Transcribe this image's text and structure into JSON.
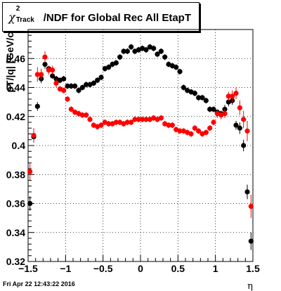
{
  "title": {
    "chi_symbol": "χ",
    "superscript": "2",
    "subscript": "Track",
    "main": "/NDF for Global Rec All EtapT"
  },
  "footer_date": "Fri Apr 22 12:43:22 2016",
  "chart_data": {
    "type": "scatter",
    "title": "χ²_Track/NDF for Global Rec All EtapT",
    "xlabel": "η",
    "ylabel": "pT/|q| [GeV/c",
    "xlim": [
      -1.5,
      1.5
    ],
    "ylim": [
      0.32,
      0.48
    ],
    "grid": true,
    "x_ticks": [
      -1.5,
      -1,
      -0.5,
      0,
      0.5,
      1,
      1.5
    ],
    "x_tick_labels": [
      "−1.5",
      "−1",
      "−0.5",
      "0",
      "0.5",
      "1",
      "1.5"
    ],
    "y_ticks": [
      0.32,
      0.34,
      0.36,
      0.38,
      0.4,
      0.42,
      0.44,
      0.46
    ],
    "y_tick_labels": [
      "0.32",
      "0.34",
      "0.36",
      "0.38",
      "0.4",
      "0.42",
      "0.44",
      "0.46"
    ],
    "series": [
      {
        "color": "#000000",
        "points": [
          [
            -1.475,
            0.36,
            0.005
          ],
          [
            -1.425,
            0.406,
            0.004
          ],
          [
            -1.375,
            0.427,
            0.003
          ],
          [
            -1.325,
            0.446,
            0.003
          ],
          [
            -1.275,
            0.456,
            0.003
          ],
          [
            -1.225,
            0.453,
            0.002
          ],
          [
            -1.175,
            0.448,
            0.002
          ],
          [
            -1.125,
            0.446,
            0.002
          ],
          [
            -1.075,
            0.445,
            0.002
          ],
          [
            -1.025,
            0.446,
            0.002
          ],
          [
            -0.975,
            0.441,
            0.002
          ],
          [
            -0.925,
            0.441,
            0.002
          ],
          [
            -0.875,
            0.441,
            0.002
          ],
          [
            -0.825,
            0.438,
            0.002
          ],
          [
            -0.775,
            0.44,
            0.002
          ],
          [
            -0.725,
            0.442,
            0.002
          ],
          [
            -0.675,
            0.442,
            0.002
          ],
          [
            -0.625,
            0.443,
            0.002
          ],
          [
            -0.575,
            0.445,
            0.002
          ],
          [
            -0.525,
            0.447,
            0.002
          ],
          [
            -0.475,
            0.453,
            0.002
          ],
          [
            -0.425,
            0.454,
            0.002
          ],
          [
            -0.375,
            0.456,
            0.002
          ],
          [
            -0.325,
            0.457,
            0.002
          ],
          [
            -0.275,
            0.461,
            0.002
          ],
          [
            -0.225,
            0.465,
            0.002
          ],
          [
            -0.175,
            0.465,
            0.002
          ],
          [
            -0.125,
            0.468,
            0.002
          ],
          [
            -0.075,
            0.465,
            0.002
          ],
          [
            -0.025,
            0.466,
            0.002
          ],
          [
            0.025,
            0.467,
            0.002
          ],
          [
            0.075,
            0.466,
            0.002
          ],
          [
            0.125,
            0.468,
            0.002
          ],
          [
            0.175,
            0.467,
            0.002
          ],
          [
            0.225,
            0.463,
            0.002
          ],
          [
            0.275,
            0.465,
            0.002
          ],
          [
            0.325,
            0.461,
            0.002
          ],
          [
            0.375,
            0.456,
            0.002
          ],
          [
            0.425,
            0.455,
            0.002
          ],
          [
            0.475,
            0.454,
            0.002
          ],
          [
            0.525,
            0.451,
            0.002
          ],
          [
            0.575,
            0.44,
            0.002
          ],
          [
            0.625,
            0.438,
            0.002
          ],
          [
            0.675,
            0.437,
            0.002
          ],
          [
            0.725,
            0.436,
            0.002
          ],
          [
            0.775,
            0.433,
            0.002
          ],
          [
            0.825,
            0.433,
            0.002
          ],
          [
            0.875,
            0.431,
            0.002
          ],
          [
            0.925,
            0.425,
            0.002
          ],
          [
            0.975,
            0.425,
            0.002
          ],
          [
            1.025,
            0.423,
            0.002
          ],
          [
            1.075,
            0.422,
            0.002
          ],
          [
            1.125,
            0.425,
            0.003
          ],
          [
            1.175,
            0.43,
            0.003
          ],
          [
            1.225,
            0.431,
            0.003
          ],
          [
            1.275,
            0.414,
            0.003
          ],
          [
            1.325,
            0.412,
            0.004
          ],
          [
            1.375,
            0.4,
            0.004
          ],
          [
            1.425,
            0.368,
            0.005
          ],
          [
            1.475,
            0.334,
            0.006
          ]
        ]
      },
      {
        "color": "#ff0000",
        "points": [
          [
            -1.475,
            0.382,
            0.006
          ],
          [
            -1.425,
            0.407,
            0.005
          ],
          [
            -1.375,
            0.449,
            0.005
          ],
          [
            -1.325,
            0.449,
            0.004
          ],
          [
            -1.275,
            0.461,
            0.004
          ],
          [
            -1.225,
            0.452,
            0.003
          ],
          [
            -1.175,
            0.452,
            0.003
          ],
          [
            -1.125,
            0.443,
            0.003
          ],
          [
            -1.075,
            0.439,
            0.002
          ],
          [
            -1.025,
            0.438,
            0.002
          ],
          [
            -0.975,
            0.432,
            0.002
          ],
          [
            -0.925,
            0.425,
            0.002
          ],
          [
            -0.875,
            0.423,
            0.002
          ],
          [
            -0.825,
            0.422,
            0.002
          ],
          [
            -0.775,
            0.421,
            0.002
          ],
          [
            -0.725,
            0.421,
            0.002
          ],
          [
            -0.675,
            0.418,
            0.002
          ],
          [
            -0.625,
            0.414,
            0.002
          ],
          [
            -0.575,
            0.413,
            0.002
          ],
          [
            -0.525,
            0.414,
            0.002
          ],
          [
            -0.475,
            0.416,
            0.002
          ],
          [
            -0.425,
            0.415,
            0.002
          ],
          [
            -0.375,
            0.415,
            0.002
          ],
          [
            -0.325,
            0.416,
            0.002
          ],
          [
            -0.275,
            0.416,
            0.002
          ],
          [
            -0.225,
            0.415,
            0.002
          ],
          [
            -0.175,
            0.416,
            0.002
          ],
          [
            -0.125,
            0.416,
            0.002
          ],
          [
            -0.075,
            0.418,
            0.002
          ],
          [
            -0.025,
            0.418,
            0.002
          ],
          [
            0.025,
            0.418,
            0.002
          ],
          [
            0.075,
            0.418,
            0.002
          ],
          [
            0.125,
            0.418,
            0.002
          ],
          [
            0.175,
            0.419,
            0.002
          ],
          [
            0.225,
            0.418,
            0.002
          ],
          [
            0.275,
            0.419,
            0.002
          ],
          [
            0.325,
            0.415,
            0.002
          ],
          [
            0.375,
            0.414,
            0.002
          ],
          [
            0.425,
            0.414,
            0.002
          ],
          [
            0.475,
            0.411,
            0.002
          ],
          [
            0.525,
            0.41,
            0.002
          ],
          [
            0.575,
            0.41,
            0.002
          ],
          [
            0.625,
            0.409,
            0.002
          ],
          [
            0.675,
            0.408,
            0.002
          ],
          [
            0.725,
            0.412,
            0.002
          ],
          [
            0.775,
            0.41,
            0.002
          ],
          [
            0.825,
            0.408,
            0.002
          ],
          [
            0.875,
            0.409,
            0.002
          ],
          [
            0.925,
            0.412,
            0.002
          ],
          [
            0.975,
            0.416,
            0.002
          ],
          [
            1.025,
            0.422,
            0.003
          ],
          [
            1.075,
            0.421,
            0.003
          ],
          [
            1.125,
            0.422,
            0.003
          ],
          [
            1.175,
            0.434,
            0.003
          ],
          [
            1.225,
            0.434,
            0.004
          ],
          [
            1.275,
            0.436,
            0.004
          ],
          [
            1.325,
            0.426,
            0.005
          ],
          [
            1.375,
            0.418,
            0.006
          ],
          [
            1.425,
            0.41,
            0.007
          ],
          [
            1.475,
            0.358,
            0.008
          ]
        ]
      }
    ]
  }
}
